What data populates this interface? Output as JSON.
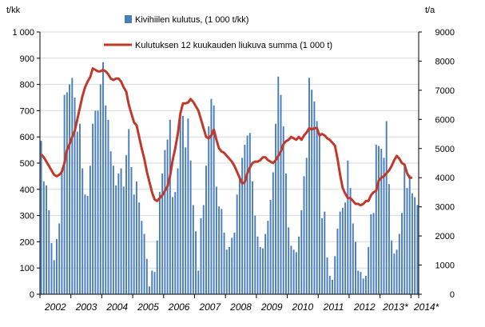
{
  "chart_data": {
    "type": "bar+line",
    "left_axis_unit": "t/kk",
    "right_axis_unit": "t/a",
    "left_ylim": [
      0,
      1000
    ],
    "right_ylim": [
      0,
      9000
    ],
    "left_ticks": [
      "0",
      "100",
      "200",
      "300",
      "400",
      "500",
      "600",
      "700",
      "800",
      "900",
      "1 000"
    ],
    "right_ticks": [
      "0",
      "1000",
      "2000",
      "3000",
      "4000",
      "5000",
      "6000",
      "7000",
      "8000",
      "9000"
    ],
    "x_start_year": 2002,
    "x_labels": [
      "2002",
      "2003",
      "2004",
      "2005",
      "2006",
      "2007",
      "2008",
      "2009",
      "2010",
      "2011",
      "2012",
      "2013*",
      "2014*"
    ],
    "grid": true,
    "legend_placement": "top-center",
    "bar_color": "#4a7ebb",
    "line_color": "#c0392b",
    "series": [
      {
        "name": "Kivihiilen kulutus, (1 000 t/kk)",
        "type": "bar",
        "axis": "left",
        "values": [
          585,
          430,
          415,
          320,
          195,
          130,
          210,
          270,
          480,
          760,
          770,
          800,
          825,
          750,
          620,
          650,
          480,
          380,
          375,
          490,
          650,
          700,
          700,
          800,
          885,
          720,
          665,
          545,
          490,
          415,
          460,
          480,
          410,
          530,
          630,
          485,
          380,
          430,
          350,
          280,
          230,
          135,
          30,
          90,
          85,
          205,
          390,
          460,
          550,
          590,
          665,
          370,
          390,
          480,
          680,
          680,
          560,
          670,
          510,
          340,
          240,
          90,
          290,
          340,
          490,
          640,
          745,
          720,
          410,
          335,
          325,
          235,
          170,
          180,
          215,
          235,
          380,
          440,
          520,
          570,
          605,
          615,
          430,
          300,
          220,
          180,
          175,
          230,
          280,
          360,
          465,
          650,
          830,
          760,
          640,
          460,
          255,
          185,
          170,
          160,
          220,
          320,
          450,
          520,
          825,
          780,
          735,
          660,
          615,
          290,
          315,
          140,
          70,
          55,
          145,
          250,
          315,
          330,
          350,
          510,
          405,
          270,
          200,
          90,
          85,
          60,
          70,
          180,
          305,
          310,
          570,
          565,
          555,
          520,
          660,
          420,
          205,
          155,
          170,
          230,
          310,
          490,
          405,
          455,
          385,
          370,
          340
        ]
      },
      {
        "name": "Kulutuksen 12 kuukauden liukuva summa (1 000 t)",
        "type": "line",
        "axis": "right",
        "values": [
          4800,
          4700,
          4550,
          4400,
          4250,
          4100,
          4050,
          4100,
          4200,
          4500,
          4950,
          5150,
          5400,
          5600,
          6000,
          6400,
          6800,
          7100,
          7300,
          7450,
          7750,
          7700,
          7650,
          7650,
          7700,
          7650,
          7550,
          7400,
          7350,
          7400,
          7400,
          7300,
          7100,
          6950,
          6500,
          6200,
          5900,
          5800,
          5400,
          5000,
          4650,
          4200,
          3850,
          3500,
          3250,
          3200,
          3300,
          3400,
          3550,
          3700,
          4050,
          4600,
          5000,
          5500,
          6200,
          6550,
          6550,
          6580,
          6700,
          6600,
          6450,
          6300,
          6000,
          5700,
          5400,
          5350,
          5450,
          5650,
          5300,
          5000,
          4900,
          4850,
          4750,
          4650,
          4550,
          4400,
          4200,
          4000,
          3800,
          3850,
          4150,
          4350,
          4500,
          4550,
          4550,
          4600,
          4700,
          4700,
          4600,
          4550,
          4500,
          4600,
          4750,
          4900,
          5150,
          5250,
          5300,
          5400,
          5350,
          5300,
          5400,
          5300,
          5450,
          5550,
          5700,
          5650,
          5700,
          5700,
          5450,
          5500,
          5450,
          5350,
          5300,
          5200,
          5100,
          4650,
          4100,
          3650,
          3450,
          3300,
          3300,
          3200,
          3100,
          3100,
          3050,
          3100,
          3200,
          3200,
          3400,
          3500,
          3550,
          3900,
          4000,
          4050,
          4150,
          4250,
          4400,
          4600,
          4750,
          4650,
          4500,
          4450,
          4150,
          4000,
          4000
        ]
      }
    ]
  }
}
